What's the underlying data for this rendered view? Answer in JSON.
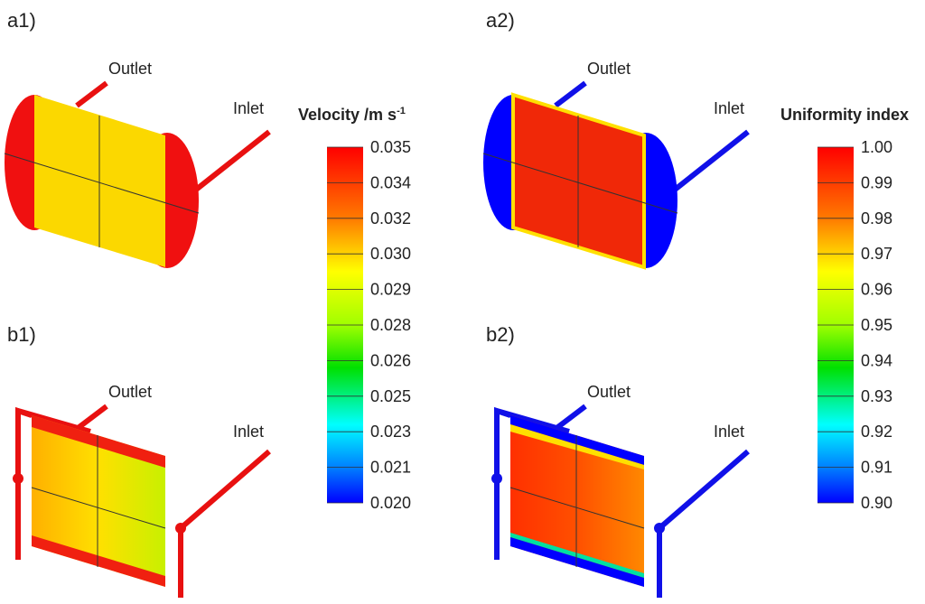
{
  "panels": [
    {
      "label": "a1)",
      "outlet": "Outlet",
      "inlet": "Inlet"
    },
    {
      "label": "a2)",
      "outlet": "Outlet",
      "inlet": "Inlet"
    },
    {
      "label": "b1)",
      "outlet": "Outlet",
      "inlet": "Inlet"
    },
    {
      "label": "b2)",
      "outlet": "Outlet",
      "inlet": "Inlet"
    }
  ],
  "colorbars": [
    {
      "title": "Velocity /m s",
      "title_superscript": "-1",
      "ticks": [
        "0.035",
        "0.034",
        "0.032",
        "0.030",
        "0.029",
        "0.028",
        "0.026",
        "0.025",
        "0.023",
        "0.021",
        "0.020"
      ]
    },
    {
      "title": "Uniformity index",
      "ticks": [
        "1.00",
        "0.99",
        "0.98",
        "0.97",
        "0.96",
        "0.95",
        "0.94",
        "0.93",
        "0.92",
        "0.91",
        "0.90"
      ]
    }
  ]
}
